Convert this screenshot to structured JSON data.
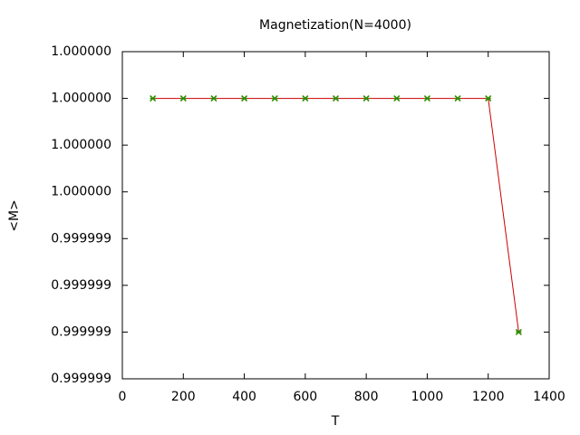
{
  "chart_data": {
    "type": "line",
    "title": "Magnetization(N=4000)",
    "x_label": "T",
    "y_label": "<M>",
    "x": [
      100,
      200,
      300,
      400,
      500,
      600,
      700,
      800,
      900,
      1000,
      1100,
      1200,
      1300
    ],
    "series": [
      {
        "color": "#cc0000",
        "marker_color": "#2e8b00",
        "values": [
          1.0,
          1.0,
          1.0,
          1.0,
          1.0,
          1.0,
          1.0,
          1.0,
          1.0,
          1.0,
          1.0,
          1.0,
          0.999999
        ]
      }
    ],
    "xlim": [
      0,
      1400
    ],
    "xticks": [
      0,
      200,
      400,
      600,
      800,
      1000,
      1200,
      1400
    ],
    "ylim": [
      0.9999988,
      1.0000002
    ],
    "yticks": [
      {
        "value": 1.0000002,
        "label": "1.000000"
      },
      {
        "value": 1.0,
        "label": "1.000000"
      },
      {
        "value": 0.9999998,
        "label": "1.000000"
      },
      {
        "value": 0.9999996,
        "label": "1.000000"
      },
      {
        "value": 0.9999994,
        "label": "0.999999"
      },
      {
        "value": 0.9999992,
        "label": "0.999999"
      },
      {
        "value": 0.999999,
        "label": "0.999999"
      },
      {
        "value": 0.9999988,
        "label": "0.999999"
      }
    ]
  }
}
